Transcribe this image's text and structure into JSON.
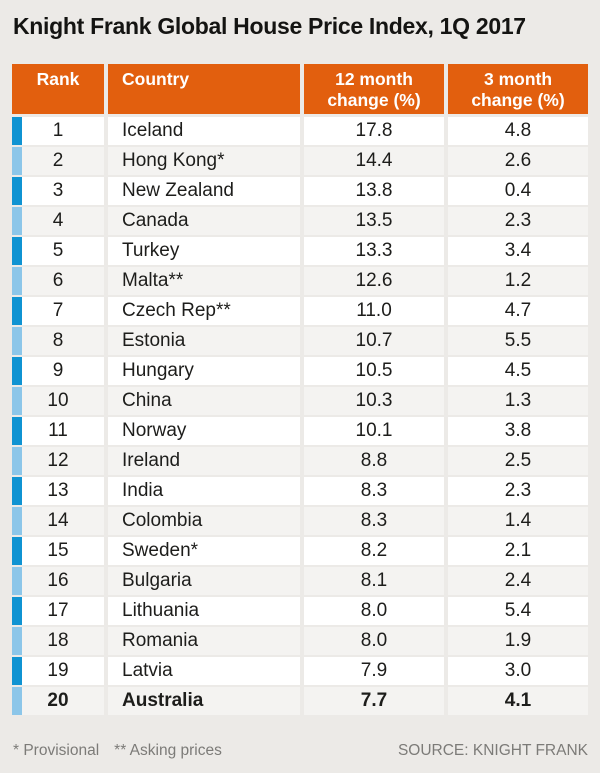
{
  "title": "Knight Frank Global House Price Index, 1Q 2017",
  "colors": {
    "header_orange": "#e25f0e",
    "rank_marker_dark_blue": "#0f93d2",
    "rank_marker_light_blue": "#8cc6e9",
    "page_background": "#eceae7",
    "row_even_background": "#f4f3f1",
    "text_dark": "#1d1d1b",
    "footer_gray": "#7c7b78"
  },
  "table": {
    "headers": [
      [
        "Rank"
      ],
      [
        "Country"
      ],
      [
        "12 month",
        "change (%)"
      ],
      [
        "3 month",
        "change (%)"
      ]
    ],
    "rows": [
      {
        "rank": "1",
        "country": "Iceland",
        "change_12m": "17.8",
        "change_3m": "4.8"
      },
      {
        "rank": "2",
        "country": "Hong Kong*",
        "change_12m": "14.4",
        "change_3m": "2.6"
      },
      {
        "rank": "3",
        "country": "New Zealand",
        "change_12m": "13.8",
        "change_3m": "0.4"
      },
      {
        "rank": "4",
        "country": "Canada",
        "change_12m": "13.5",
        "change_3m": "2.3"
      },
      {
        "rank": "5",
        "country": "Turkey",
        "change_12m": "13.3",
        "change_3m": "3.4"
      },
      {
        "rank": "6",
        "country": "Malta**",
        "change_12m": "12.6",
        "change_3m": "1.2"
      },
      {
        "rank": "7",
        "country": "Czech Rep**",
        "change_12m": "11.0",
        "change_3m": "4.7"
      },
      {
        "rank": "8",
        "country": "Estonia",
        "change_12m": "10.7",
        "change_3m": "5.5"
      },
      {
        "rank": "9",
        "country": "Hungary",
        "change_12m": "10.5",
        "change_3m": "4.5"
      },
      {
        "rank": "10",
        "country": "China",
        "change_12m": "10.3",
        "change_3m": "1.3"
      },
      {
        "rank": "11",
        "country": "Norway",
        "change_12m": "10.1",
        "change_3m": "3.8"
      },
      {
        "rank": "12",
        "country": "Ireland",
        "change_12m": "8.8",
        "change_3m": "2.5"
      },
      {
        "rank": "13",
        "country": "India",
        "change_12m": "8.3",
        "change_3m": "2.3"
      },
      {
        "rank": "14",
        "country": "Colombia",
        "change_12m": "8.3",
        "change_3m": "1.4"
      },
      {
        "rank": "15",
        "country": "Sweden*",
        "change_12m": "8.2",
        "change_3m": "2.1"
      },
      {
        "rank": "16",
        "country": "Bulgaria",
        "change_12m": "8.1",
        "change_3m": "2.4"
      },
      {
        "rank": "17",
        "country": "Lithuania",
        "change_12m": "8.0",
        "change_3m": "5.4"
      },
      {
        "rank": "18",
        "country": "Romania",
        "change_12m": "8.0",
        "change_3m": "1.9"
      },
      {
        "rank": "19",
        "country": "Latvia",
        "change_12m": "7.9",
        "change_3m": "3.0"
      },
      {
        "rank": "20",
        "country": "Australia",
        "change_12m": "7.7",
        "change_3m": "4.1",
        "bold": true
      }
    ]
  },
  "footer": {
    "notes": [
      "* Provisional",
      "** Asking prices"
    ],
    "source": "SOURCE: KNIGHT FRANK"
  },
  "chart_data": {
    "type": "table",
    "title": "Knight Frank Global House Price Index, 1Q 2017",
    "columns": [
      "Rank",
      "Country",
      "12 month change (%)",
      "3 month change (%)"
    ],
    "rows": [
      [
        1,
        "Iceland",
        17.8,
        4.8
      ],
      [
        2,
        "Hong Kong*",
        14.4,
        2.6
      ],
      [
        3,
        "New Zealand",
        13.8,
        0.4
      ],
      [
        4,
        "Canada",
        13.5,
        2.3
      ],
      [
        5,
        "Turkey",
        13.3,
        3.4
      ],
      [
        6,
        "Malta**",
        12.6,
        1.2
      ],
      [
        7,
        "Czech Rep**",
        11.0,
        4.7
      ],
      [
        8,
        "Estonia",
        10.7,
        5.5
      ],
      [
        9,
        "Hungary",
        10.5,
        4.5
      ],
      [
        10,
        "China",
        10.3,
        1.3
      ],
      [
        11,
        "Norway",
        10.1,
        3.8
      ],
      [
        12,
        "Ireland",
        8.8,
        2.5
      ],
      [
        13,
        "India",
        8.3,
        2.3
      ],
      [
        14,
        "Colombia",
        8.3,
        1.4
      ],
      [
        15,
        "Sweden*",
        8.2,
        2.1
      ],
      [
        16,
        "Bulgaria",
        8.1,
        2.4
      ],
      [
        17,
        "Lithuania",
        8.0,
        5.4
      ],
      [
        18,
        "Romania",
        8.0,
        1.9
      ],
      [
        19,
        "Latvia",
        7.9,
        3.0
      ],
      [
        20,
        "Australia",
        7.7,
        4.1
      ]
    ],
    "footnotes": [
      "* Provisional",
      "** Asking prices"
    ],
    "source": "SOURCE: KNIGHT FRANK"
  }
}
